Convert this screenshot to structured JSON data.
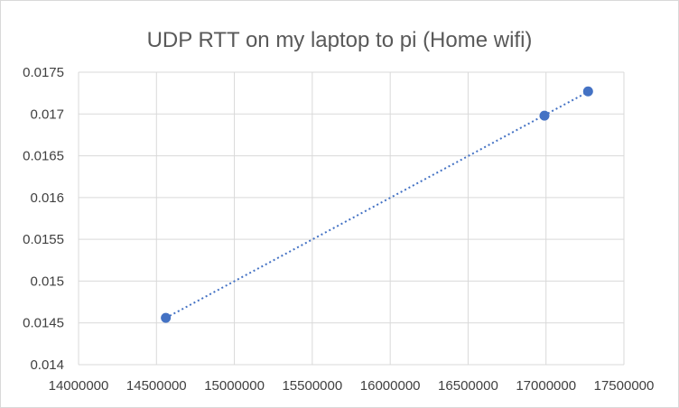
{
  "chart_data": {
    "type": "scatter",
    "title": "UDP RTT on my laptop to pi (Home wifi)",
    "xlabel": "",
    "ylabel": "",
    "xlim": [
      14000000,
      17500000
    ],
    "ylim": [
      0.014,
      0.0175
    ],
    "x_ticks": [
      "14000000",
      "14500000",
      "15000000",
      "15500000",
      "16000000",
      "16500000",
      "17000000",
      "17500000"
    ],
    "y_ticks": [
      "0.014",
      "0.0145",
      "0.015",
      "0.0155",
      "0.016",
      "0.0165",
      "0.017",
      "0.0175"
    ],
    "grid": true,
    "legend": "none",
    "series": [
      {
        "points": [
          {
            "x": 14560000,
            "y": 0.01456
          },
          {
            "x": 16990000,
            "y": 0.01698
          },
          {
            "x": 17270000,
            "y": 0.01727
          }
        ],
        "color": "#4472c4",
        "trendline": "linear-dotted"
      }
    ]
  }
}
